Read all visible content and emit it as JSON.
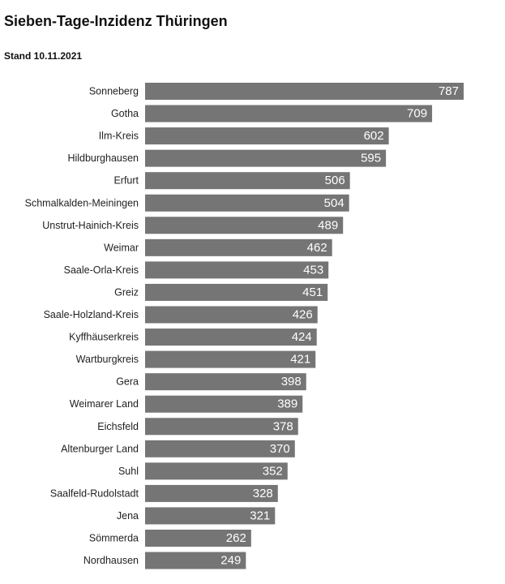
{
  "title": "Sieben-Tage-Inzidenz Thüringen",
  "subtitle": "Stand 10.11.2021",
  "colors": {
    "bar": "#757575",
    "value_text": "#ffffff",
    "label_text": "#222222"
  },
  "chart_data": {
    "type": "bar",
    "orientation": "horizontal",
    "title": "Sieben-Tage-Inzidenz Thüringen",
    "subtitle": "Stand 10.11.2021",
    "xlabel": "",
    "ylabel": "",
    "xlim": [
      0,
      787
    ],
    "grid": false,
    "categories": [
      "Sonneberg",
      "Gotha",
      "Ilm-Kreis",
      "Hildburghausen",
      "Erfurt",
      "Schmalkalden-Meiningen",
      "Unstrut-Hainich-Kreis",
      "Weimar",
      "Saale-Orla-Kreis",
      "Greiz",
      "Saale-Holzland-Kreis",
      "Kyffhäuserkreis",
      "Wartburgkreis",
      "Gera",
      "Weimarer Land",
      "Eichsfeld",
      "Altenburger Land",
      "Suhl",
      "Saalfeld-Rudolstadt",
      "Jena",
      "Sömmerda",
      "Nordhausen"
    ],
    "values": [
      787,
      709,
      602,
      595,
      506,
      504,
      489,
      462,
      453,
      451,
      426,
      424,
      421,
      398,
      389,
      378,
      370,
      352,
      328,
      321,
      262,
      249
    ]
  }
}
